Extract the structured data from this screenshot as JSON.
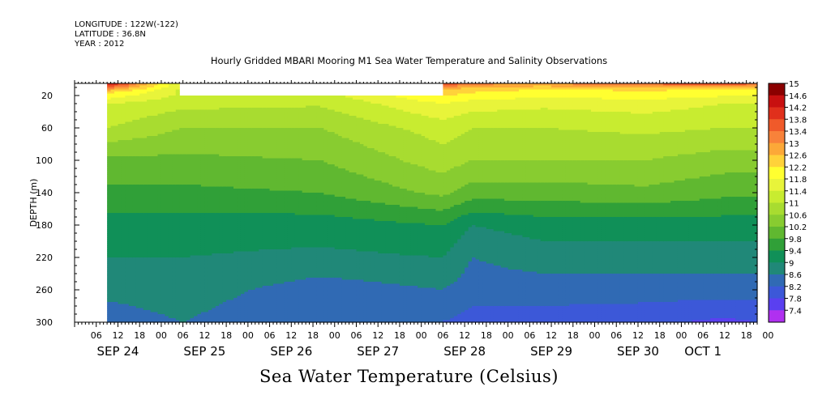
{
  "header": {
    "longitude": "LONGITUDE : 122W(-122)",
    "latitude": "LATITUDE : 36.8N",
    "year": "YEAR : 2012"
  },
  "title": "Hourly Gridded MBARI Mooring M1 Sea Water Temperature and Salinity Observations",
  "bottom_title": "Sea Water Temperature (Celsius)",
  "chart_data": {
    "type": "heatmap",
    "title": "Hourly Gridded MBARI Mooring M1 Sea Water Temperature and Salinity Observations",
    "xlabel": "",
    "ylabel": "DEPTH (m)",
    "colorbar_label": "Sea Water Temperature (Celsius)",
    "x_hour_labels": [
      "06",
      "12",
      "18",
      "00",
      "06",
      "12",
      "18",
      "00",
      "06",
      "12",
      "18",
      "00",
      "06",
      "12",
      "18",
      "00",
      "06",
      "12",
      "18",
      "00",
      "06",
      "12",
      "18",
      "00",
      "06",
      "12",
      "18",
      "00",
      "06",
      "12",
      "18",
      "00"
    ],
    "x_day_labels": [
      "SEP 24",
      "SEP 25",
      "SEP 26",
      "SEP 27",
      "SEP 28",
      "SEP 29",
      "SEP 30",
      "OCT  1"
    ],
    "xlim_hours": [
      0,
      189
    ],
    "ylim": [
      300,
      5
    ],
    "y_ticks": [
      20,
      60,
      100,
      140,
      180,
      220,
      260,
      300
    ],
    "y_invert": true,
    "colorbar_levels": [
      15,
      14.6,
      14.2,
      13.8,
      13.4,
      13,
      12.6,
      12.2,
      11.8,
      11.4,
      11,
      10.6,
      10.2,
      9.8,
      9.4,
      9,
      8.6,
      8.2,
      7.8,
      7.4
    ],
    "colorbar_colors": [
      "#8b0000",
      "#c81010",
      "#e0301c",
      "#f05a2a",
      "#f8823a",
      "#fca838",
      "#ffd23a",
      "#ffff30",
      "#e8f43a",
      "#c8ec30",
      "#a8dc30",
      "#88cc30",
      "#60b830",
      "#30a038",
      "#109058",
      "#208878",
      "#306ab4",
      "#3c58d8",
      "#5a40f0",
      "#b030f0"
    ],
    "data_start_hours": 9,
    "data_gaps": [
      {
        "start_hours": 29,
        "end_hours": 102,
        "depth_top_m": 20
      }
    ],
    "profiles": [
      {
        "hour": 9,
        "temps": [
          [
            5,
            14.4
          ],
          [
            15,
            12.4
          ],
          [
            30,
            11.4
          ],
          [
            60,
            11.0
          ],
          [
            100,
            10.1
          ],
          [
            140,
            9.7
          ],
          [
            180,
            9.2
          ],
          [
            220,
            9.0
          ],
          [
            260,
            8.7
          ],
          [
            300,
            8.4
          ]
        ]
      },
      {
        "hour": 30,
        "temps": [
          [
            20,
            11.3
          ],
          [
            60,
            10.6
          ],
          [
            100,
            10.1
          ],
          [
            140,
            9.7
          ],
          [
            180,
            9.2
          ],
          [
            220,
            9.0
          ],
          [
            260,
            8.8
          ],
          [
            300,
            8.6
          ]
        ]
      },
      {
        "hour": 68,
        "temps": [
          [
            20,
            11.2
          ],
          [
            60,
            10.6
          ],
          [
            100,
            10.2
          ],
          [
            140,
            9.8
          ],
          [
            180,
            9.2
          ],
          [
            220,
            8.9
          ],
          [
            260,
            8.4
          ],
          [
            300,
            8.2
          ]
        ]
      },
      {
        "hour": 102,
        "temps": [
          [
            5,
            14.0
          ],
          [
            12,
            12.6
          ],
          [
            30,
            11.8
          ],
          [
            60,
            11.2
          ],
          [
            100,
            10.8
          ],
          [
            140,
            10.3
          ],
          [
            180,
            9.4
          ],
          [
            220,
            9.0
          ],
          [
            260,
            8.6
          ],
          [
            300,
            8.2
          ]
        ]
      },
      {
        "hour": 110,
        "temps": [
          [
            5,
            13.2
          ],
          [
            12,
            12.4
          ],
          [
            30,
            11.6
          ],
          [
            60,
            11.0
          ],
          [
            100,
            10.6
          ],
          [
            140,
            10.0
          ],
          [
            180,
            9.0
          ],
          [
            220,
            8.6
          ],
          [
            260,
            8.4
          ],
          [
            300,
            8.0
          ]
        ]
      },
      {
        "hour": 130,
        "temps": [
          [
            5,
            13.0
          ],
          [
            12,
            12.2
          ],
          [
            30,
            11.5
          ],
          [
            60,
            11.0
          ],
          [
            100,
            10.6
          ],
          [
            140,
            10.0
          ],
          [
            180,
            9.2
          ],
          [
            220,
            8.8
          ],
          [
            260,
            8.4
          ],
          [
            300,
            8.0
          ]
        ]
      },
      {
        "hour": 158,
        "temps": [
          [
            5,
            13.6
          ],
          [
            12,
            12.3
          ],
          [
            30,
            11.6
          ],
          [
            60,
            11.1
          ],
          [
            100,
            10.6
          ],
          [
            140,
            10.1
          ],
          [
            180,
            9.2
          ],
          [
            220,
            8.8
          ],
          [
            260,
            8.4
          ],
          [
            300,
            7.9
          ]
        ]
      },
      {
        "hour": 180,
        "temps": [
          [
            5,
            13.8
          ],
          [
            12,
            12.2
          ],
          [
            30,
            11.4
          ],
          [
            60,
            11.0
          ],
          [
            100,
            10.4
          ],
          [
            140,
            9.9
          ],
          [
            180,
            9.2
          ],
          [
            220,
            8.8
          ],
          [
            260,
            8.4
          ],
          [
            300,
            7.7
          ]
        ]
      },
      {
        "hour": 189,
        "temps": [
          [
            5,
            13.6
          ],
          [
            12,
            12.2
          ],
          [
            30,
            11.4
          ],
          [
            60,
            11.0
          ],
          [
            100,
            10.4
          ],
          [
            140,
            9.9
          ],
          [
            180,
            9.2
          ],
          [
            220,
            8.8
          ],
          [
            260,
            8.4
          ],
          [
            300,
            7.8
          ]
        ]
      }
    ]
  }
}
